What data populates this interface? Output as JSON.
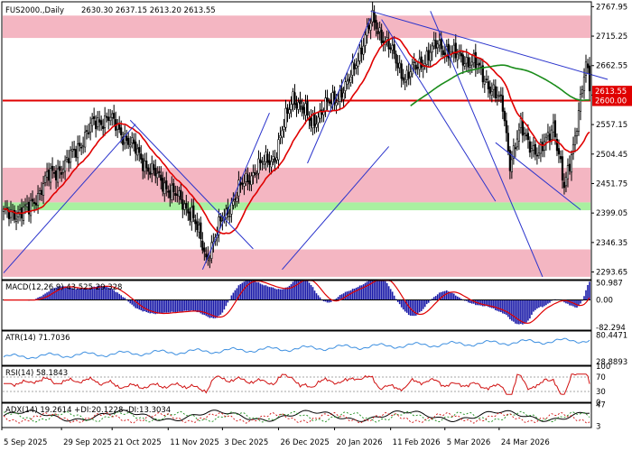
{
  "chart_data": {
    "type": "line",
    "instrument": "FUS2000.,Daily",
    "ohlc_header": "2630.30 2637.15 2613.20 2613.55",
    "last_price": "2613.55",
    "level_price": "2600.00",
    "price_axis_ticks": [
      "2767.95",
      "2715.25",
      "2662.55",
      "2609.85",
      "2557.15",
      "2504.45",
      "2451.75",
      "2399.05",
      "2346.35",
      "2293.65"
    ],
    "ylim": [
      2280,
      2775
    ],
    "x_labels": [
      "5 Sep 2025",
      "29 Sep 2025",
      "21 Oct 2025",
      "11 Nov 2025",
      "3 Dec 2025",
      "26 Dec 2025",
      "20 Jan 2026",
      "11 Feb 2026",
      "5 Mar 2026",
      "24 Mar 2026"
    ],
    "zones": [
      {
        "from": 2712,
        "to": 2752,
        "color": "#f4b6c2"
      },
      {
        "from": 2418,
        "to": 2480,
        "color": "#f4b6c2"
      },
      {
        "from": 2404,
        "to": 2418,
        "color": "#a9f0a0"
      },
      {
        "from": 2285,
        "to": 2334,
        "color": "#f4b6c2"
      }
    ],
    "horizontal_level": 2600,
    "trendlines": [
      {
        "from": [
          0,
          2292
        ],
        "to": [
          73,
          2558
        ]
      },
      {
        "from": [
          70,
          2565
        ],
        "to": [
          138,
          2335
        ]
      },
      {
        "from": [
          110,
          2298
        ],
        "to": [
          147,
          2578
        ]
      },
      {
        "from": [
          154,
          2298
        ],
        "to": [
          213,
          2518
        ]
      },
      {
        "from": [
          168,
          2488
        ],
        "to": [
          203,
          2748
        ]
      },
      {
        "from": [
          203,
          2760
        ],
        "to": [
          334,
          2638
        ]
      },
      {
        "from": [
          209,
          2745
        ],
        "to": [
          272,
          2420
        ]
      },
      {
        "from": [
          236,
          2760
        ],
        "to": [
          298,
          2285
        ]
      },
      {
        "from": [
          272,
          2525
        ],
        "to": [
          319,
          2405
        ]
      }
    ],
    "series": [
      {
        "name": "",
        "color": "#e00000",
        "kind": "ma_fast"
      },
      {
        "name": "",
        "color": "#1a8c1a",
        "kind": "ma_slow"
      }
    ],
    "macd": {
      "label": "MACD(12,26,9) 43.525 29.328",
      "ticks": [
        "50.987",
        "0.00",
        "-82.294"
      ],
      "ylim": [
        -90,
        58
      ]
    },
    "atr": {
      "label": "ATR(14) 71.7036",
      "ticks": [
        "80.4471",
        "28.8893"
      ],
      "ylim": [
        22,
        88
      ]
    },
    "rsi": {
      "label": "RSI(14) 58.1843",
      "ticks": [
        "100",
        "70",
        "30",
        "0"
      ],
      "ylim": [
        0,
        100
      ]
    },
    "adx": {
      "label": "ADX(14) 19.2614 +DI:20.1228 -DI:13.3034",
      "ticks": [
        "47",
        "3"
      ],
      "ylim": [
        0,
        50
      ]
    }
  }
}
